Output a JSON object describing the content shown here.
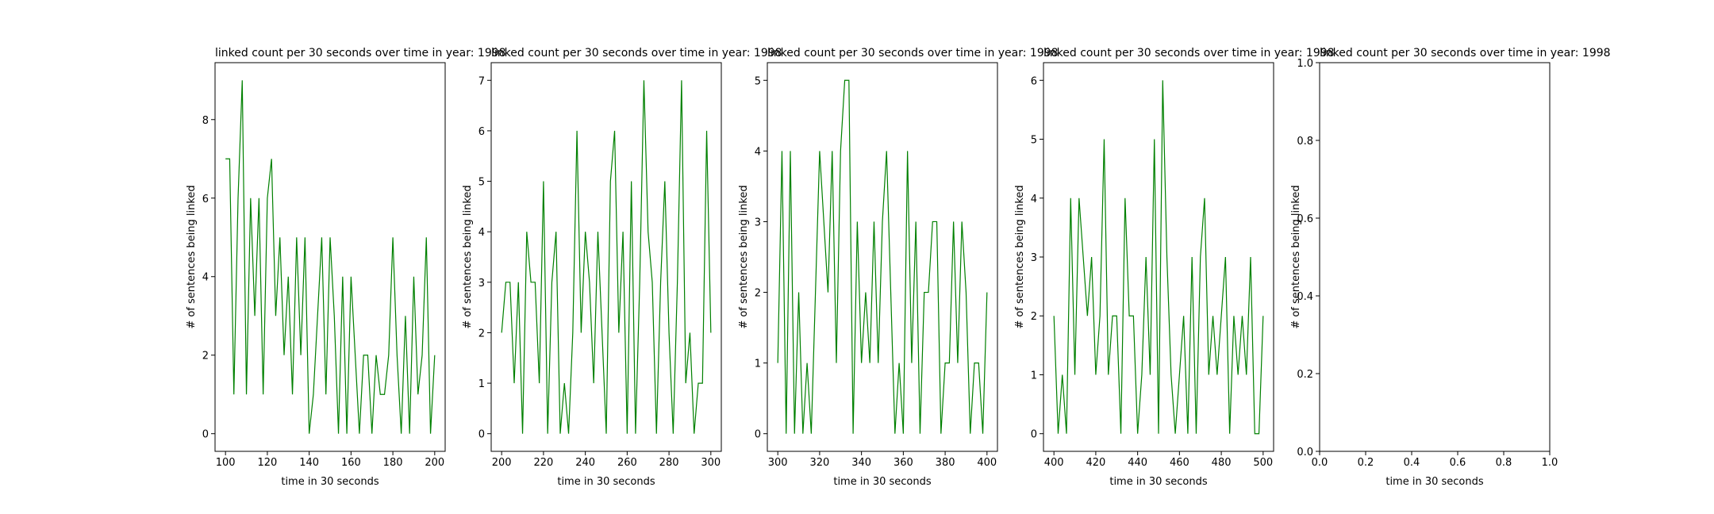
{
  "chart_data": [
    {
      "type": "line",
      "title": "linked count per 30 seconds over time in year: 1998",
      "xlabel": "time in 30 seconds",
      "ylabel": "# of sentences being linked",
      "color": "#008000",
      "x": [
        100,
        102,
        104,
        106,
        108,
        110,
        112,
        114,
        116,
        118,
        120,
        122,
        124,
        126,
        128,
        130,
        132,
        134,
        136,
        138,
        140,
        142,
        144,
        146,
        148,
        150,
        152,
        154,
        156,
        158,
        160,
        162,
        164,
        166,
        168,
        170,
        172,
        174,
        176,
        178,
        180,
        182,
        184,
        186,
        188,
        190,
        192,
        194,
        196,
        198,
        200
      ],
      "values": [
        7,
        7,
        1,
        6,
        9,
        1,
        6,
        3,
        6,
        1,
        6,
        7,
        3,
        5,
        2,
        4,
        1,
        5,
        2,
        5,
        0,
        1,
        3,
        5,
        1,
        5,
        3,
        0,
        4,
        0,
        4,
        2,
        0,
        2,
        2,
        0,
        2,
        1,
        1,
        2,
        5,
        2,
        0,
        3,
        0,
        4,
        1,
        2,
        5,
        0,
        2
      ],
      "xlim": [
        95,
        205
      ],
      "xticks": [
        100,
        120,
        140,
        160,
        180,
        200
      ],
      "ylim": [
        -0.45,
        9.45
      ],
      "yticks": [
        0,
        2,
        4,
        6,
        8
      ]
    },
    {
      "type": "line",
      "title": "linked count per 30 seconds over time in year: 1998",
      "xlabel": "time in 30 seconds",
      "ylabel": "# of sentences being linked",
      "color": "#008000",
      "x": [
        200,
        202,
        204,
        206,
        208,
        210,
        212,
        214,
        216,
        218,
        220,
        222,
        224,
        226,
        228,
        230,
        232,
        234,
        236,
        238,
        240,
        242,
        244,
        246,
        248,
        250,
        252,
        254,
        256,
        258,
        260,
        262,
        264,
        266,
        268,
        270,
        272,
        274,
        276,
        278,
        280,
        282,
        284,
        286,
        288,
        290,
        292,
        294,
        296,
        298,
        300
      ],
      "values": [
        2,
        3,
        3,
        1,
        3,
        0,
        4,
        3,
        3,
        1,
        5,
        0,
        3,
        4,
        0,
        1,
        0,
        2,
        6,
        2,
        4,
        3,
        1,
        4,
        2,
        0,
        5,
        6,
        2,
        4,
        0,
        5,
        0,
        3,
        7,
        4,
        3,
        0,
        3,
        5,
        2,
        0,
        3,
        7,
        1,
        2,
        0,
        1,
        1,
        6,
        2
      ],
      "xlim": [
        195,
        305
      ],
      "xticks": [
        200,
        220,
        240,
        260,
        280,
        300
      ],
      "ylim": [
        -0.35,
        7.35
      ],
      "yticks": [
        0,
        1,
        2,
        3,
        4,
        5,
        6,
        7
      ]
    },
    {
      "type": "line",
      "title": "linked count per 30 seconds over time in year: 1998",
      "xlabel": "time in 30 seconds",
      "ylabel": "# of sentences being linked",
      "color": "#008000",
      "x": [
        300,
        302,
        304,
        306,
        308,
        310,
        312,
        314,
        316,
        318,
        320,
        322,
        324,
        326,
        328,
        330,
        332,
        334,
        336,
        338,
        340,
        342,
        344,
        346,
        348,
        350,
        352,
        354,
        356,
        358,
        360,
        362,
        364,
        366,
        368,
        370,
        372,
        374,
        376,
        378,
        380,
        382,
        384,
        386,
        388,
        390,
        392,
        394,
        396,
        398,
        400
      ],
      "values": [
        1,
        4,
        0,
        4,
        0,
        2,
        0,
        1,
        0,
        2,
        4,
        3,
        2,
        4,
        1,
        4,
        5,
        5,
        0,
        3,
        1,
        2,
        1,
        3,
        1,
        3,
        4,
        2,
        0,
        1,
        0,
        4,
        1,
        3,
        0,
        2,
        2,
        3,
        3,
        0,
        1,
        1,
        3,
        1,
        3,
        2,
        0,
        1,
        1,
        0,
        2
      ],
      "xlim": [
        295,
        405
      ],
      "xticks": [
        300,
        320,
        340,
        360,
        380,
        400
      ],
      "ylim": [
        -0.25,
        5.25
      ],
      "yticks": [
        0,
        1,
        2,
        3,
        4,
        5
      ]
    },
    {
      "type": "line",
      "title": "linked count per 30 seconds over time in year: 1998",
      "xlabel": "time in 30 seconds",
      "ylabel": "# of sentences being linked",
      "color": "#008000",
      "x": [
        400,
        402,
        404,
        406,
        408,
        410,
        412,
        414,
        416,
        418,
        420,
        422,
        424,
        426,
        428,
        430,
        432,
        434,
        436,
        438,
        440,
        442,
        444,
        446,
        448,
        450,
        452,
        454,
        456,
        458,
        460,
        462,
        464,
        466,
        468,
        470,
        472,
        474,
        476,
        478,
        480,
        482,
        484,
        486,
        488,
        490,
        492,
        494,
        496,
        498,
        500
      ],
      "values": [
        2,
        0,
        1,
        0,
        4,
        1,
        4,
        3,
        2,
        3,
        1,
        2,
        5,
        1,
        2,
        2,
        0,
        4,
        2,
        2,
        0,
        1,
        3,
        1,
        5,
        0,
        6,
        3,
        1,
        0,
        1,
        2,
        0,
        3,
        0,
        3,
        4,
        1,
        2,
        1,
        2,
        3,
        0,
        2,
        1,
        2,
        1,
        3,
        0,
        0,
        2
      ],
      "xlim": [
        395,
        505
      ],
      "xticks": [
        400,
        420,
        440,
        460,
        480,
        500
      ],
      "ylim": [
        -0.3,
        6.3
      ],
      "yticks": [
        0,
        1,
        2,
        3,
        4,
        5,
        6
      ]
    },
    {
      "type": "line",
      "title": "linked count per 30 seconds over time in year: 1998",
      "xlabel": "time in 30 seconds",
      "ylabel": "# of sentences being linked",
      "xlim": [
        0,
        1
      ],
      "xticks": [
        {
          "value": 0,
          "label": "0.0"
        },
        {
          "value": 0.2,
          "label": "0.2"
        },
        {
          "value": 0.4,
          "label": "0.4"
        },
        {
          "value": 0.6,
          "label": "0.6"
        },
        {
          "value": 0.8,
          "label": "0.8"
        },
        {
          "value": 1,
          "label": "1.0"
        }
      ],
      "ylim": [
        0,
        1
      ],
      "yticks": [
        {
          "value": 0,
          "label": "0.0"
        },
        {
          "value": 0.2,
          "label": "0.2"
        },
        {
          "value": 0.4,
          "label": "0.4"
        },
        {
          "value": 0.6,
          "label": "0.6"
        },
        {
          "value": 0.8,
          "label": "0.8"
        },
        {
          "value": 1,
          "label": "1.0"
        }
      ]
    }
  ]
}
